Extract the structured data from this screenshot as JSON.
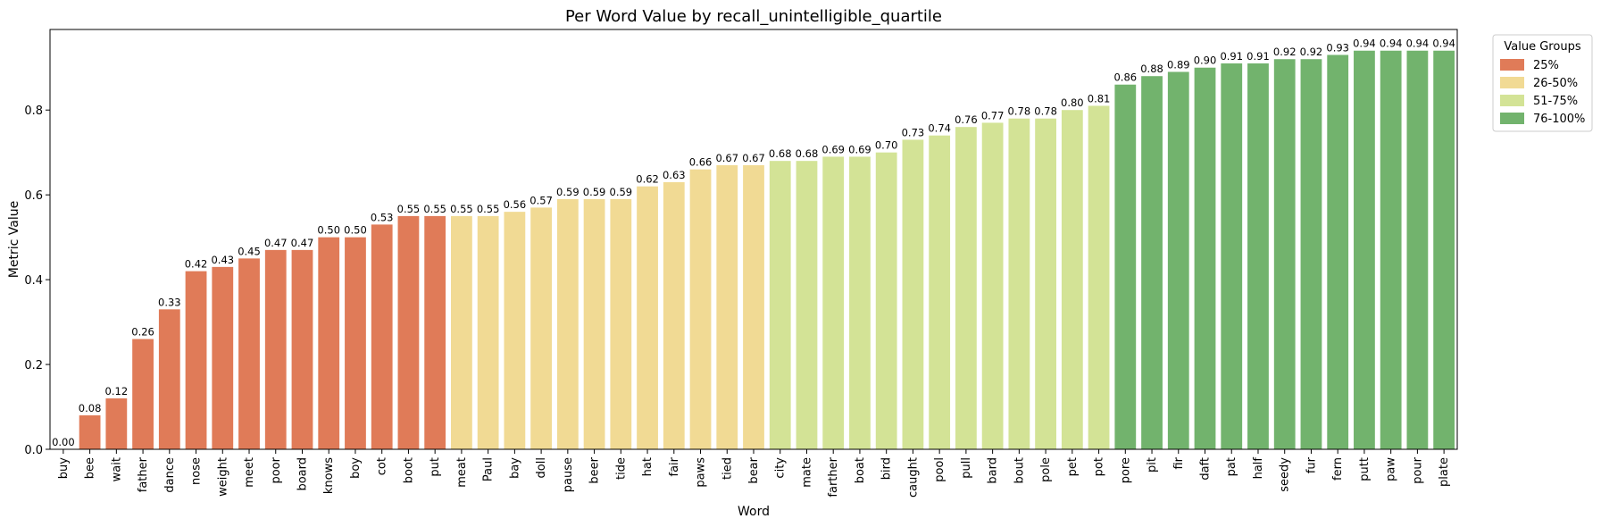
{
  "chart_data": {
    "type": "bar",
    "title": "Per Word Value by recall_unintelligible_quartile",
    "xlabel": "Word",
    "ylabel": "Metric Value",
    "ylim": [
      0,
      0.99
    ],
    "yticks": [
      "0.0",
      "0.2",
      "0.4",
      "0.6",
      "0.8"
    ],
    "ytick_values": [
      0,
      0.2,
      0.4,
      0.6,
      0.8
    ],
    "grid": false,
    "legend_placement": "outside-top-right",
    "legend_title": "Value Groups",
    "groups": [
      {
        "name": "25%",
        "color": "#e07b58"
      },
      {
        "name": "26-50%",
        "color": "#f1da94"
      },
      {
        "name": "51-75%",
        "color": "#d3e396"
      },
      {
        "name": "76-100%",
        "color": "#72b36d"
      }
    ],
    "categories": [
      "buy",
      "bee",
      "wait",
      "father",
      "dance",
      "nose",
      "weight",
      "meet",
      "poor",
      "board",
      "knows",
      "boy",
      "cot",
      "boot",
      "put",
      "meat",
      "Paul",
      "bay",
      "doll",
      "pause",
      "beer",
      "tide",
      "hat",
      "fair",
      "paws",
      "tied",
      "bear",
      "city",
      "mate",
      "farther",
      "boat",
      "bird",
      "caught",
      "pool",
      "pull",
      "bard",
      "bout",
      "pole",
      "pet",
      "pot",
      "pore",
      "pit",
      "fir",
      "daft",
      "pat",
      "half",
      "seedy",
      "fur",
      "fern",
      "putt",
      "paw",
      "pour",
      "plate"
    ],
    "values": [
      0.0,
      0.08,
      0.12,
      0.26,
      0.33,
      0.42,
      0.43,
      0.45,
      0.47,
      0.47,
      0.5,
      0.5,
      0.53,
      0.55,
      0.55,
      0.55,
      0.55,
      0.56,
      0.57,
      0.59,
      0.59,
      0.59,
      0.62,
      0.63,
      0.66,
      0.67,
      0.67,
      0.68,
      0.68,
      0.69,
      0.69,
      0.7,
      0.73,
      0.74,
      0.76,
      0.77,
      0.78,
      0.78,
      0.8,
      0.81,
      0.86,
      0.88,
      0.89,
      0.9,
      0.91,
      0.91,
      0.92,
      0.92,
      0.93,
      0.94,
      0.94,
      0.94,
      0.94
    ],
    "labels": [
      "0.00",
      "0.08",
      "0.12",
      "0.26",
      "0.33",
      "0.42",
      "0.43",
      "0.45",
      "0.47",
      "0.47",
      "0.50",
      "0.50",
      "0.53",
      "0.55",
      "0.55",
      "0.55",
      "0.55",
      "0.56",
      "0.57",
      "0.59",
      "0.59",
      "0.59",
      "0.62",
      "0.63",
      "0.66",
      "0.67",
      "0.67",
      "0.68",
      "0.68",
      "0.69",
      "0.69",
      "0.70",
      "0.73",
      "0.74",
      "0.76",
      "0.77",
      "0.78",
      "0.78",
      "0.80",
      "0.81",
      "0.86",
      "0.88",
      "0.89",
      "0.90",
      "0.91",
      "0.91",
      "0.92",
      "0.92",
      "0.93",
      "0.94",
      "0.94",
      "0.94",
      "0.94"
    ],
    "group_index": [
      0,
      0,
      0,
      0,
      0,
      0,
      0,
      0,
      0,
      0,
      0,
      0,
      0,
      0,
      0,
      1,
      1,
      1,
      1,
      1,
      1,
      1,
      1,
      1,
      1,
      1,
      1,
      2,
      2,
      2,
      2,
      2,
      2,
      2,
      2,
      2,
      2,
      2,
      2,
      2,
      3,
      3,
      3,
      3,
      3,
      3,
      3,
      3,
      3,
      3,
      3,
      3,
      3
    ]
  }
}
